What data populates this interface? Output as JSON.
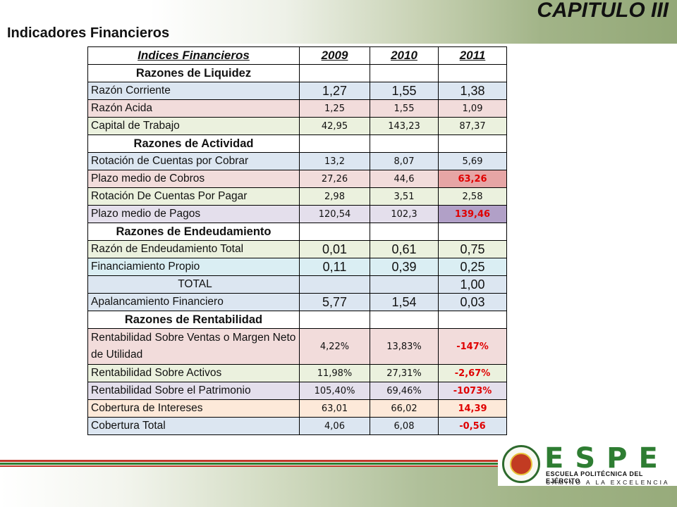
{
  "header": {
    "chapter": "CAPITULO III",
    "subtitle": "Indicadores Financieros"
  },
  "table": {
    "header": {
      "label": "Indices Financieros",
      "years": [
        "2009",
        "2010",
        "2011"
      ]
    },
    "rows": [
      {
        "kind": "section",
        "label": "Razones de Liquidez"
      },
      {
        "label": "Razón Corriente",
        "values": [
          "1,27",
          "1,55",
          "1,38"
        ],
        "bg": "blue",
        "big": true
      },
      {
        "label": "Razón Acida",
        "values": [
          "1,25",
          "1,55",
          "1,09"
        ],
        "bg": "pink"
      },
      {
        "label": "Capital de Trabajo",
        "values": [
          "42,95",
          "143,23",
          "87,37"
        ],
        "bg": "green"
      },
      {
        "kind": "section",
        "label": "Razones de Actividad"
      },
      {
        "label": "Rotación de Cuentas por Cobrar",
        "values": [
          "13,2",
          "8,07",
          "5,69"
        ],
        "bg": "blue"
      },
      {
        "label": "Plazo medio de Cobros",
        "values": [
          "27,26",
          "44,6",
          "63,26"
        ],
        "bg": "pink",
        "highlight2011": "#e6a5a5"
      },
      {
        "label": "Rotación De Cuentas Por Pagar",
        "values": [
          "2,98",
          "3,51",
          "2,58"
        ],
        "bg": "green"
      },
      {
        "label": "Plazo medio de Pagos",
        "values": [
          "120,54",
          "102,3",
          "139,46"
        ],
        "bg": "lavender",
        "highlight2011": "#b1a0c7"
      },
      {
        "kind": "section",
        "label": "Razones de Endeudamiento"
      },
      {
        "label": "Razón de Endeudamiento Total",
        "values": [
          "0,01",
          "0,61",
          "0,75"
        ],
        "bg": "green",
        "big": true
      },
      {
        "label": "Financiamiento Propio",
        "values": [
          "0,11",
          "0,39",
          "0,25"
        ],
        "bg": "cyan",
        "big": true
      },
      {
        "label": "TOTAL",
        "values": [
          "",
          "",
          "1,00"
        ],
        "bg": "blue",
        "big": true
      },
      {
        "label": "Apalancamiento Financiero",
        "values": [
          "5,77",
          "1,54",
          "0,03"
        ],
        "bg": "blue",
        "big": true
      },
      {
        "kind": "section",
        "label": "Razones de Rentabilidad"
      },
      {
        "label": "Rentabilidad Sobre Ventas o Margen Neto de Utilidad",
        "values": [
          "4,22%",
          "13,83%",
          "-147%"
        ],
        "bg": "pink"
      },
      {
        "label": "Rentabilidad Sobre Activos",
        "values": [
          "11,98%",
          "27,31%",
          "-2,67%"
        ],
        "bg": "green"
      },
      {
        "label": "Rentabilidad Sobre el Patrimonio",
        "values": [
          "105,40%",
          "69,46%",
          "-1073%"
        ],
        "bg": "lavender"
      },
      {
        "label": "Cobertura de Intereses",
        "values": [
          "63,01",
          "66,02",
          "14,39"
        ],
        "bg": "peach"
      },
      {
        "label": "Cobertura Total",
        "values": [
          "4,06",
          "6,08",
          "-0,56"
        ],
        "bg": "blue"
      }
    ]
  },
  "logo": {
    "letters": "ESPE",
    "school": "ESCUELA POLITÉCNICA DEL EJÉRCITO",
    "motto": "CAMINO A LA EXCELENCIA"
  },
  "colors": {
    "accent_green": "#2e7d32",
    "red_value": "#e00000",
    "line_red": "#c0392b",
    "line_green": "#2e7d32"
  }
}
